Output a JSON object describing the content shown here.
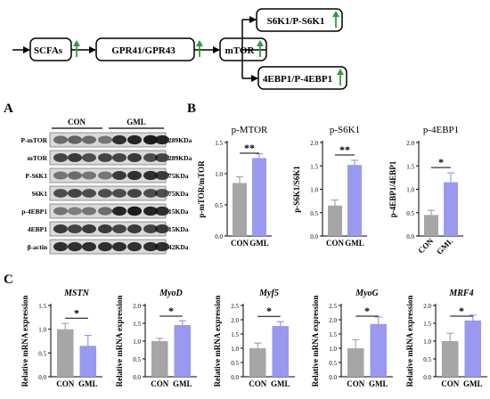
{
  "pathway": {
    "nodes": [
      "SCFAs",
      "GPR41/GPR43",
      "mTOR",
      "S6K1/P-S6K1",
      "4EBP1/P-4EBP1"
    ],
    "up_arrow_nodes": [
      "SCFAs",
      "GPR41/GPR43",
      "mTOR",
      "S6K1/P-S6K1",
      "4EBP1/P-4EBP1"
    ],
    "arrow_color": "#2e9e3e"
  },
  "panels": {
    "A": "A",
    "B": "B",
    "C": "C"
  },
  "western_blot": {
    "groups": [
      "CON",
      "GML"
    ],
    "rows": [
      {
        "protein": "P-mTOR",
        "size": "289KDa"
      },
      {
        "protein": "mTOR",
        "size": "289KDa"
      },
      {
        "protein": "P-S6K1",
        "size": "75KDa"
      },
      {
        "protein": "S6K1",
        "size": "75KDa"
      },
      {
        "protein": "p-4EBP1",
        "size": "15KDa"
      },
      {
        "protein": "4EBP1",
        "size": "15KDa"
      },
      {
        "protein": "β-actin",
        "size": "42KDa"
      }
    ]
  },
  "colors": {
    "con": "#a6a6a6",
    "gml": "#9999f0"
  },
  "chart_data": [
    {
      "type": "bar",
      "title": "p-MTOR",
      "ylabel": "p-mTOR/mTOR",
      "categories": [
        "CON",
        "GML"
      ],
      "values": [
        0.85,
        1.25
      ],
      "errors": [
        0.1,
        0.07
      ],
      "ylim": [
        0,
        1.5
      ],
      "yticks": [
        0.0,
        0.5,
        1.0,
        1.5
      ],
      "significance": "**"
    },
    {
      "type": "bar",
      "title": "p-S6K1",
      "ylabel": "p-S6K1/S6K1",
      "categories": [
        "CON",
        "GML"
      ],
      "values": [
        0.65,
        1.52
      ],
      "errors": [
        0.12,
        0.1
      ],
      "ylim": [
        0,
        2.0
      ],
      "yticks": [
        0.0,
        0.5,
        1.0,
        1.5,
        2.0
      ],
      "significance": "**"
    },
    {
      "type": "bar",
      "title": "p-4EBP1",
      "ylabel": "p-4EBP1/4EBP1",
      "categories": [
        "CON",
        "GML"
      ],
      "values": [
        0.45,
        1.15
      ],
      "errors": [
        0.1,
        0.2
      ],
      "ylim": [
        0,
        2.0
      ],
      "yticks": [
        0.0,
        0.5,
        1.0,
        1.5,
        2.0
      ],
      "significance": "*"
    },
    {
      "type": "bar",
      "title": "MSTN",
      "ylabel": "Relative mRNA expression",
      "categories": [
        "CON",
        "GML"
      ],
      "values": [
        1.0,
        0.65
      ],
      "errors": [
        0.12,
        0.22
      ],
      "ylim": [
        0,
        1.5
      ],
      "yticks": [
        0.0,
        0.5,
        1.0,
        1.5
      ],
      "significance": "*"
    },
    {
      "type": "bar",
      "title": "MyoD",
      "ylabel": "Relative mRNA expression",
      "categories": [
        "CON",
        "GML"
      ],
      "values": [
        1.0,
        1.45
      ],
      "errors": [
        0.08,
        0.12
      ],
      "ylim": [
        0,
        2.0
      ],
      "yticks": [
        0.0,
        0.5,
        1.0,
        1.5,
        2.0
      ],
      "significance": "*"
    },
    {
      "type": "bar",
      "title": "Myf5",
      "ylabel": "Relative mRNA expression",
      "categories": [
        "CON",
        "GML"
      ],
      "values": [
        1.0,
        1.78
      ],
      "errors": [
        0.18,
        0.15
      ],
      "ylim": [
        0,
        2.5
      ],
      "yticks": [
        0.0,
        0.5,
        1.0,
        1.5,
        2.0,
        2.5
      ],
      "significance": "*"
    },
    {
      "type": "bar",
      "title": "MyoG",
      "ylabel": "Relative mRNA expression",
      "categories": [
        "CON",
        "GML"
      ],
      "values": [
        1.0,
        1.85
      ],
      "errors": [
        0.3,
        0.25
      ],
      "ylim": [
        0,
        2.5
      ],
      "yticks": [
        0.0,
        0.5,
        1.0,
        1.5,
        2.0,
        2.5
      ],
      "significance": "*"
    },
    {
      "type": "bar",
      "title": "MRF4",
      "ylabel": "Relative mRNA expression",
      "categories": [
        "CON",
        "GML"
      ],
      "values": [
        1.0,
        1.58
      ],
      "errors": [
        0.22,
        0.15
      ],
      "ylim": [
        0,
        2.0
      ],
      "yticks": [
        0.0,
        0.5,
        1.0,
        1.5,
        2.0
      ],
      "significance": "*"
    }
  ]
}
